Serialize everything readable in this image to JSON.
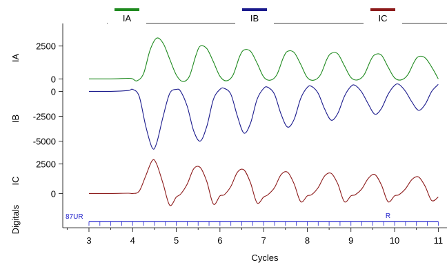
{
  "chart_data": {
    "type": "line",
    "xlabel": "Cycles",
    "xlim": [
      2.4,
      11.2
    ],
    "x_ticks": [
      "3",
      "4",
      "5",
      "6",
      "7",
      "8",
      "9",
      "10",
      "11"
    ],
    "legend": [
      {
        "label": "IA",
        "color": "#1f8a1f"
      },
      {
        "label": "IB",
        "color": "#1a1a8c"
      },
      {
        "label": "IC",
        "color": "#8c1a1a"
      }
    ],
    "panels": [
      {
        "label": "IA",
        "color": "#1f8a1f",
        "ylim": [
          -300,
          3800
        ],
        "y_ticks": [
          {
            "value": 2500,
            "label": "2500"
          },
          {
            "value": 0,
            "label": "0"
          }
        ],
        "x": [
          3.0,
          3.5,
          3.9,
          4.0,
          4.1,
          4.25,
          4.4,
          4.55,
          4.7,
          4.85,
          5.0,
          5.15,
          5.3,
          5.45,
          5.55,
          5.7,
          5.85,
          6.0,
          6.15,
          6.3,
          6.45,
          6.55,
          6.7,
          6.85,
          7.0,
          7.15,
          7.3,
          7.45,
          7.55,
          7.7,
          7.85,
          8.0,
          8.15,
          8.3,
          8.45,
          8.55,
          8.7,
          8.85,
          9.0,
          9.15,
          9.3,
          9.45,
          9.55,
          9.7,
          9.85,
          10.0,
          10.15,
          10.3,
          10.45,
          10.55,
          10.7,
          10.85,
          11.0
        ],
        "y": [
          0,
          0,
          40,
          0,
          -150,
          400,
          2200,
          3100,
          2700,
          1500,
          300,
          -200,
          200,
          1800,
          2500,
          2300,
          1300,
          200,
          -150,
          300,
          1700,
          2200,
          2100,
          1200,
          150,
          -100,
          300,
          1600,
          2100,
          2000,
          1100,
          100,
          -100,
          300,
          1500,
          1950,
          1900,
          1000,
          100,
          -80,
          300,
          1400,
          1850,
          1800,
          900,
          80,
          -80,
          300,
          1300,
          1700,
          1600,
          900,
          0
        ]
      },
      {
        "label": "IB",
        "color": "#1a1a8c",
        "ylim": [
          -6500,
          1000
        ],
        "y_ticks": [
          {
            "value": 0,
            "label": "0"
          },
          {
            "value": -2500,
            "label": "-2500"
          },
          {
            "value": -5000,
            "label": "-5000"
          }
        ],
        "x": [
          3.0,
          3.5,
          3.9,
          4.0,
          4.15,
          4.3,
          4.45,
          4.55,
          4.7,
          4.85,
          5.0,
          5.1,
          5.25,
          5.4,
          5.55,
          5.7,
          5.85,
          6.0,
          6.1,
          6.25,
          6.4,
          6.55,
          6.7,
          6.85,
          7.0,
          7.1,
          7.25,
          7.4,
          7.55,
          7.7,
          7.85,
          8.0,
          8.1,
          8.25,
          8.4,
          8.55,
          8.7,
          8.85,
          9.0,
          9.1,
          9.25,
          9.4,
          9.55,
          9.7,
          9.85,
          10.0,
          10.1,
          10.25,
          10.4,
          10.55,
          10.7,
          10.85,
          11.0
        ],
        "y": [
          0,
          0,
          80,
          200,
          -500,
          -3500,
          -5700,
          -5200,
          -2500,
          -200,
          200,
          0,
          -1500,
          -4000,
          -5000,
          -3500,
          -800,
          200,
          300,
          -300,
          -2500,
          -4200,
          -3200,
          -800,
          300,
          400,
          -300,
          -2300,
          -3600,
          -2800,
          -700,
          400,
          500,
          -200,
          -1800,
          -2900,
          -2200,
          -500,
          500,
          600,
          -100,
          -1300,
          -2300,
          -1700,
          -300,
          600,
          700,
          0,
          -1100,
          -1900,
          -1300,
          0,
          700
        ]
      },
      {
        "label": "IC",
        "color": "#8c1a1a",
        "ylim": [
          -1500,
          3300
        ],
        "y_ticks": [
          {
            "value": 2500,
            "label": "2500"
          },
          {
            "value": 0,
            "label": "0"
          }
        ],
        "x": [
          3.0,
          3.5,
          3.9,
          4.0,
          4.15,
          4.3,
          4.45,
          4.55,
          4.7,
          4.85,
          5.0,
          5.1,
          5.25,
          5.4,
          5.55,
          5.7,
          5.85,
          6.0,
          6.1,
          6.25,
          6.4,
          6.55,
          6.7,
          6.85,
          7.0,
          7.1,
          7.25,
          7.4,
          7.55,
          7.7,
          7.85,
          8.0,
          8.1,
          8.25,
          8.4,
          8.55,
          8.7,
          8.85,
          9.0,
          9.1,
          9.25,
          9.4,
          9.55,
          9.7,
          9.85,
          10.0,
          10.1,
          10.25,
          10.4,
          10.55,
          10.7,
          10.85,
          11.0
        ],
        "y": [
          0,
          0,
          20,
          0,
          200,
          1500,
          2800,
          2500,
          800,
          -1000,
          -300,
          -50,
          800,
          2100,
          2200,
          1000,
          -900,
          -200,
          -100,
          600,
          1800,
          2000,
          900,
          -800,
          -300,
          -100,
          500,
          1600,
          1800,
          800,
          -700,
          -200,
          -100,
          500,
          1500,
          1700,
          800,
          -700,
          -200,
          -100,
          400,
          1300,
          1600,
          700,
          -700,
          -200,
          -100,
          400,
          1200,
          1400,
          600,
          -600,
          -300
        ]
      }
    ],
    "digitals": {
      "label": "Digitals",
      "channel_name": "87UR",
      "marker_label": "R",
      "marker_x": 9.85,
      "line_color": "#2222cc"
    }
  }
}
